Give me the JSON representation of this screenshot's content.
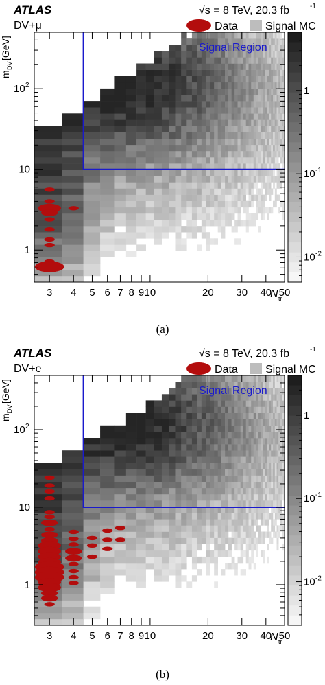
{
  "colors": {
    "frame": "#000000",
    "signal_region": "#1a1acc",
    "data_marker": "#b30d0d",
    "mc_legend": "#bdbdbd"
  },
  "chart_data": [
    {
      "type": "heatmap",
      "experiment": "ATLAS",
      "energy_label": "√s = 8 TeV, 20.3 fb",
      "energy_exp": "-1",
      "channel": "DV+μ",
      "legend": [
        {
          "label": "Data",
          "style": "red-ellipse"
        },
        {
          "label": "Signal MC",
          "style": "gray-box"
        }
      ],
      "region_label": "Signal Region",
      "xlabel": "N",
      "xlabel_sub": "tr",
      "ylabel": "m",
      "ylabel_sub": "DV",
      "ylabel_unit": " [GeV]",
      "xscale": "log",
      "yscale": "log",
      "xlim": [
        2.5,
        50
      ],
      "ylim": [
        0.4,
        500
      ],
      "zlim": [
        0.005,
        5
      ],
      "x_ticks": [
        "3",
        "4",
        "5",
        "6",
        "7",
        "8",
        "9",
        "10",
        "20",
        "30",
        "40",
        "50"
      ],
      "x_tick_values": [
        3,
        4,
        5,
        6,
        7,
        8,
        9,
        10,
        20,
        30,
        40,
        50
      ],
      "y_ticks": [
        {
          "base": "1",
          "exp": "",
          "value": 1
        },
        {
          "base": "10",
          "exp": "",
          "value": 10
        },
        {
          "base": "10",
          "exp": "2",
          "value": 100
        }
      ],
      "z_ticks": [
        {
          "base": "10",
          "exp": "-2",
          "value": 0.01
        },
        {
          "base": "10",
          "exp": "-1",
          "value": 0.1
        },
        {
          "base": "1",
          "exp": "",
          "value": 1
        }
      ],
      "signal_region": {
        "ntr_min": 4.5,
        "mdv_min": 10
      },
      "data_points": [
        {
          "ntr": 3,
          "mdv": 5.6,
          "weight": 1
        },
        {
          "ntr": 3,
          "mdv": 4.0,
          "weight": 1
        },
        {
          "ntr": 3,
          "mdv": 3.3,
          "weight": 3
        },
        {
          "ntr": 3,
          "mdv": 2.9,
          "weight": 2
        },
        {
          "ntr": 3,
          "mdv": 2.4,
          "weight": 1
        },
        {
          "ntr": 3,
          "mdv": 1.8,
          "weight": 1
        },
        {
          "ntr": 3,
          "mdv": 1.35,
          "weight": 1
        },
        {
          "ntr": 3,
          "mdv": 1.15,
          "weight": 1
        },
        {
          "ntr": 3,
          "mdv": 0.72,
          "weight": 1
        },
        {
          "ntr": 3,
          "mdv": 0.62,
          "weight": 4
        },
        {
          "ntr": 4,
          "mdv": 3.3,
          "weight": 1
        }
      ]
    },
    {
      "type": "heatmap",
      "experiment": "ATLAS",
      "energy_label": "√s = 8 TeV, 20.3 fb",
      "energy_exp": "-1",
      "channel": "DV+e",
      "legend": [
        {
          "label": "Data",
          "style": "red-ellipse"
        },
        {
          "label": "Signal MC",
          "style": "gray-box"
        }
      ],
      "region_label": "Signal Region",
      "xlabel": "N",
      "xlabel_sub": "tr",
      "ylabel": "m",
      "ylabel_sub": "DV",
      "ylabel_unit": " [GeV]",
      "xscale": "log",
      "yscale": "log",
      "xlim": [
        2.5,
        50
      ],
      "ylim": [
        0.3,
        500
      ],
      "zlim": [
        0.003,
        3
      ],
      "x_ticks": [
        "3",
        "4",
        "5",
        "6",
        "7",
        "8",
        "9",
        "10",
        "20",
        "30",
        "40",
        "50"
      ],
      "x_tick_values": [
        3,
        4,
        5,
        6,
        7,
        8,
        9,
        10,
        20,
        30,
        40,
        50
      ],
      "y_ticks": [
        {
          "base": "1",
          "exp": "",
          "value": 1
        },
        {
          "base": "10",
          "exp": "",
          "value": 10
        },
        {
          "base": "10",
          "exp": "2",
          "value": 100
        }
      ],
      "z_ticks": [
        {
          "base": "10",
          "exp": "-2",
          "value": 0.01
        },
        {
          "base": "10",
          "exp": "-1",
          "value": 0.1
        },
        {
          "base": "1",
          "exp": "",
          "value": 1
        }
      ],
      "signal_region": {
        "ntr_min": 4.5,
        "mdv_min": 10
      },
      "data_points": [
        {
          "ntr": 3,
          "mdv": 24,
          "weight": 1
        },
        {
          "ntr": 3,
          "mdv": 19,
          "weight": 1
        },
        {
          "ntr": 3,
          "mdv": 16,
          "weight": 1
        },
        {
          "ntr": 3,
          "mdv": 13,
          "weight": 1
        },
        {
          "ntr": 3,
          "mdv": 8.6,
          "weight": 1
        },
        {
          "ntr": 3,
          "mdv": 7.5,
          "weight": 1
        },
        {
          "ntr": 3,
          "mdv": 6.3,
          "weight": 2
        },
        {
          "ntr": 3,
          "mdv": 5.2,
          "weight": 1
        },
        {
          "ntr": 3,
          "mdv": 4.4,
          "weight": 2
        },
        {
          "ntr": 3,
          "mdv": 3.7,
          "weight": 2
        },
        {
          "ntr": 3,
          "mdv": 3.2,
          "weight": 3
        },
        {
          "ntr": 3,
          "mdv": 2.7,
          "weight": 3
        },
        {
          "ntr": 3,
          "mdv": 2.3,
          "weight": 3
        },
        {
          "ntr": 3,
          "mdv": 1.95,
          "weight": 3
        },
        {
          "ntr": 3,
          "mdv": 1.7,
          "weight": 4
        },
        {
          "ntr": 3,
          "mdv": 1.45,
          "weight": 4
        },
        {
          "ntr": 3,
          "mdv": 1.25,
          "weight": 4
        },
        {
          "ntr": 3,
          "mdv": 1.07,
          "weight": 3
        },
        {
          "ntr": 3,
          "mdv": 0.92,
          "weight": 3
        },
        {
          "ntr": 3,
          "mdv": 0.78,
          "weight": 2
        },
        {
          "ntr": 3,
          "mdv": 0.67,
          "weight": 2
        },
        {
          "ntr": 3,
          "mdv": 0.56,
          "weight": 1
        },
        {
          "ntr": 4,
          "mdv": 4.8,
          "weight": 1
        },
        {
          "ntr": 4,
          "mdv": 3.9,
          "weight": 1
        },
        {
          "ntr": 4,
          "mdv": 3.3,
          "weight": 1
        },
        {
          "ntr": 4,
          "mdv": 2.7,
          "weight": 2
        },
        {
          "ntr": 4,
          "mdv": 2.2,
          "weight": 2
        },
        {
          "ntr": 4,
          "mdv": 1.85,
          "weight": 1
        },
        {
          "ntr": 4,
          "mdv": 1.5,
          "weight": 1
        },
        {
          "ntr": 4,
          "mdv": 1.25,
          "weight": 1
        },
        {
          "ntr": 4,
          "mdv": 1.05,
          "weight": 1
        },
        {
          "ntr": 5,
          "mdv": 4.0,
          "weight": 1
        },
        {
          "ntr": 5,
          "mdv": 3.2,
          "weight": 1
        },
        {
          "ntr": 5,
          "mdv": 2.3,
          "weight": 1
        },
        {
          "ntr": 6,
          "mdv": 5.0,
          "weight": 1
        },
        {
          "ntr": 6,
          "mdv": 3.8,
          "weight": 1
        },
        {
          "ntr": 6,
          "mdv": 2.9,
          "weight": 1
        },
        {
          "ntr": 7,
          "mdv": 5.4,
          "weight": 1
        },
        {
          "ntr": 7,
          "mdv": 3.8,
          "weight": 1
        }
      ]
    }
  ],
  "captions": [
    "(a)",
    "(b)"
  ]
}
